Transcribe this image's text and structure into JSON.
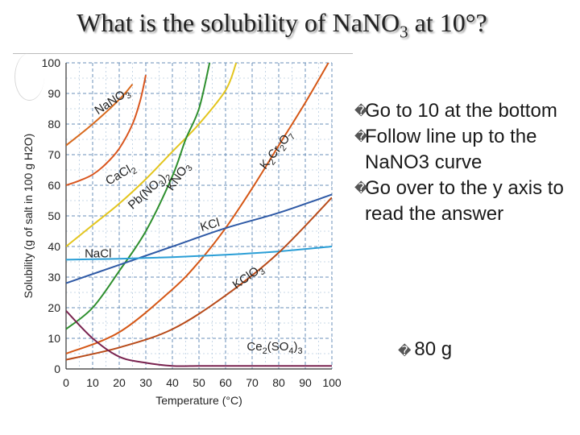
{
  "slide": {
    "title_prefix": "What is the solubility of NaNO",
    "title_sub": "3",
    "title_suffix": " at 10°?",
    "bullet_glyph": "�",
    "bullets": [
      "Go to 10 at the bottom",
      "Follow line up to the NaNO3 curve",
      "Go over to the y axis to read the answer"
    ],
    "answer": "80 g"
  },
  "chart_data": {
    "type": "line",
    "xlabel": "Temperature (°C)",
    "ylabel": "Solubility (g of salt in 100 g H2O)",
    "xlim": [
      0,
      100
    ],
    "ylim": [
      0,
      100
    ],
    "x_ticks": [
      0,
      10,
      20,
      30,
      40,
      50,
      60,
      70,
      80,
      90,
      100
    ],
    "y_ticks": [
      0,
      10,
      20,
      30,
      40,
      50,
      60,
      70,
      80,
      90,
      100
    ],
    "grid": true,
    "series": [
      {
        "name": "NaNO3",
        "label": "NaNO3",
        "color": "#d86a1e",
        "x": [
          0,
          10,
          20,
          25
        ],
        "y": [
          73,
          80,
          88,
          93
        ],
        "label_at": [
          12,
          83
        ],
        "label_angle": -33
      },
      {
        "name": "CaCl2",
        "label": "CaCl2",
        "color": "#d9561f",
        "x": [
          0,
          5,
          10,
          15,
          20,
          25,
          28,
          30
        ],
        "y": [
          60,
          61.5,
          63.5,
          67,
          72,
          80,
          88,
          96
        ],
        "label_at": [
          16,
          60
        ],
        "label_angle": -30
      },
      {
        "name": "Pb(NO3)2",
        "label": "Pb(NO3)2",
        "color": "#e3c51e",
        "x": [
          0,
          10,
          20,
          30,
          40,
          50,
          60,
          64
        ],
        "y": [
          40,
          47,
          54,
          62,
          71,
          80,
          91,
          100
        ],
        "label_at": [
          25,
          52
        ],
        "label_angle": -42
      },
      {
        "name": "KNO3",
        "label": "KNO3",
        "color": "#2e8f2e",
        "x": [
          0,
          10,
          20,
          30,
          40,
          45,
          50,
          54
        ],
        "y": [
          13,
          20,
          32,
          45,
          63,
          75,
          85,
          100
        ],
        "label_at": [
          40,
          58
        ],
        "label_angle": -55
      },
      {
        "name": "K2Cr2O7",
        "label": "K2Cr2O7",
        "color": "#d55716",
        "x": [
          0,
          20,
          40,
          50,
          60,
          70,
          80,
          90,
          100
        ],
        "y": [
          5,
          12,
          26,
          35,
          46,
          59,
          73,
          87,
          102
        ],
        "label_at": [
          75,
          65
        ],
        "label_angle": -52
      },
      {
        "name": "KCl",
        "label": "KCl",
        "color": "#2f5aa6",
        "x": [
          0,
          20,
          40,
          60,
          80,
          100
        ],
        "y": [
          28,
          34,
          40,
          46,
          51,
          57
        ],
        "label_at": [
          51,
          45
        ],
        "label_angle": -16
      },
      {
        "name": "NaCl",
        "label": "NaCl",
        "color": "#2a9ed6",
        "x": [
          0,
          20,
          40,
          60,
          80,
          100
        ],
        "y": [
          35.7,
          36,
          36.5,
          37.3,
          38.4,
          40
        ],
        "label_at": [
          7,
          36.5
        ],
        "label_angle": 0
      },
      {
        "name": "KClO3",
        "label": "KClO3",
        "color": "#b84b1a",
        "x": [
          0,
          20,
          40,
          60,
          80,
          100
        ],
        "y": [
          3,
          7,
          13,
          24,
          38,
          56
        ],
        "label_at": [
          64,
          26
        ],
        "label_angle": -35
      },
      {
        "name": "Ce2(SO4)3",
        "label": "Ce2(SO4)3",
        "color": "#7a2450",
        "x": [
          0,
          10,
          20,
          30,
          40,
          50,
          60,
          70,
          80,
          90,
          100
        ],
        "y": [
          19,
          10,
          4,
          2,
          1,
          1,
          1,
          1,
          1,
          1,
          1
        ],
        "label_at": [
          68,
          6
        ],
        "label_angle": 0
      }
    ]
  }
}
